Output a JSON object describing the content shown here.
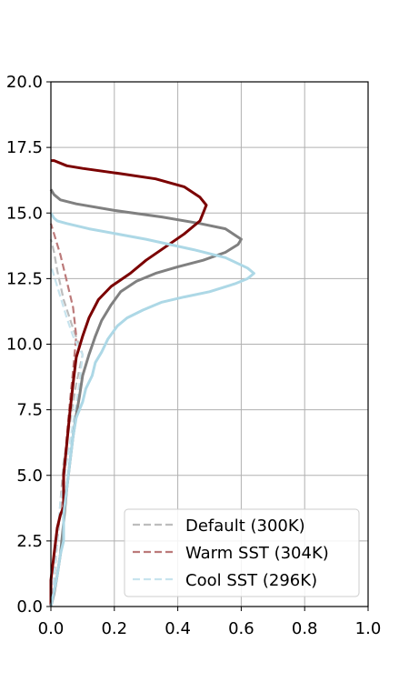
{
  "chart_data": {
    "type": "line",
    "xlim": [
      0.0,
      1.0
    ],
    "ylim": [
      0.0,
      20.0
    ],
    "grid": true,
    "x_ticks": [
      "0.0",
      "0.2",
      "0.4",
      "0.6",
      "0.8",
      "1.0"
    ],
    "y_ticks": [
      "0.0",
      "2.5",
      "5.0",
      "7.5",
      "10.0",
      "12.5",
      "15.0",
      "17.5",
      "20.0"
    ],
    "legend": {
      "placement": "lower-right",
      "entries": [
        {
          "label": "Default (300K)",
          "color": "#bdbdbd",
          "style": "dashed"
        },
        {
          "label": "Warm SST (304K)",
          "color": "#bc7a7a",
          "style": "dashed"
        },
        {
          "label": "Cool SST (296K)",
          "color": "#c8e4ee",
          "style": "dashed"
        }
      ]
    },
    "series": [
      {
        "name": "",
        "color": "#bdbdbd",
        "style": "dashed",
        "points": [
          [
            0.0,
            0.0
          ],
          [
            0.01,
            1.0
          ],
          [
            0.02,
            2.5
          ],
          [
            0.03,
            4.0
          ],
          [
            0.04,
            5.5
          ],
          [
            0.06,
            7.0
          ],
          [
            0.08,
            8.5
          ],
          [
            0.1,
            9.6
          ],
          [
            0.07,
            10.6
          ],
          [
            0.04,
            11.7
          ],
          [
            0.02,
            12.8
          ],
          [
            0.01,
            13.5
          ],
          [
            0.0,
            14.0
          ]
        ]
      },
      {
        "name": "",
        "color": "#bc7a7a",
        "style": "dashed",
        "points": [
          [
            0.0,
            0.0
          ],
          [
            0.01,
            1.2
          ],
          [
            0.02,
            2.5
          ],
          [
            0.03,
            3.7
          ],
          [
            0.04,
            5.0
          ],
          [
            0.05,
            6.5
          ],
          [
            0.06,
            7.8
          ],
          [
            0.07,
            9.0
          ],
          [
            0.08,
            10.3
          ],
          [
            0.07,
            11.4
          ],
          [
            0.05,
            12.4
          ],
          [
            0.03,
            13.4
          ],
          [
            0.01,
            14.2
          ],
          [
            0.0,
            14.6
          ]
        ]
      },
      {
        "name": "",
        "color": "#c8e4ee",
        "style": "dashed",
        "points": [
          [
            0.0,
            0.0
          ],
          [
            0.01,
            1.2
          ],
          [
            0.02,
            2.5
          ],
          [
            0.03,
            4.0
          ],
          [
            0.05,
            5.5
          ],
          [
            0.07,
            7.0
          ],
          [
            0.09,
            8.5
          ],
          [
            0.1,
            9.6
          ],
          [
            0.07,
            10.3
          ],
          [
            0.05,
            11.0
          ],
          [
            0.03,
            11.8
          ],
          [
            0.01,
            12.6
          ],
          [
            0.0,
            13.0
          ]
        ]
      },
      {
        "name": "",
        "color": "#808080",
        "style": "solid",
        "points": [
          [
            0.0,
            0.0
          ],
          [
            0.01,
            0.5
          ],
          [
            0.02,
            1.2
          ],
          [
            0.03,
            2.0
          ],
          [
            0.04,
            3.2
          ],
          [
            0.05,
            4.5
          ],
          [
            0.06,
            5.5
          ],
          [
            0.07,
            6.5
          ],
          [
            0.08,
            7.3
          ],
          [
            0.09,
            8.0
          ],
          [
            0.1,
            8.8
          ],
          [
            0.12,
            9.6
          ],
          [
            0.14,
            10.3
          ],
          [
            0.16,
            10.9
          ],
          [
            0.19,
            11.5
          ],
          [
            0.22,
            12.0
          ],
          [
            0.27,
            12.4
          ],
          [
            0.33,
            12.7
          ],
          [
            0.4,
            12.95
          ],
          [
            0.48,
            13.2
          ],
          [
            0.55,
            13.5
          ],
          [
            0.59,
            13.8
          ],
          [
            0.6,
            14.0
          ],
          [
            0.55,
            14.4
          ],
          [
            0.47,
            14.6
          ],
          [
            0.35,
            14.85
          ],
          [
            0.2,
            15.1
          ],
          [
            0.08,
            15.35
          ],
          [
            0.03,
            15.5
          ],
          [
            0.01,
            15.7
          ],
          [
            0.0,
            15.9
          ]
        ]
      },
      {
        "name": "",
        "color": "#7b0000",
        "style": "solid",
        "points": [
          [
            0.0,
            0.0
          ],
          [
            0.0,
            1.0
          ],
          [
            0.01,
            2.0
          ],
          [
            0.02,
            3.0
          ],
          [
            0.03,
            3.5
          ],
          [
            0.04,
            3.8
          ],
          [
            0.04,
            5.0
          ],
          [
            0.05,
            6.2
          ],
          [
            0.06,
            7.4
          ],
          [
            0.07,
            8.5
          ],
          [
            0.08,
            9.5
          ],
          [
            0.1,
            10.3
          ],
          [
            0.12,
            11.0
          ],
          [
            0.15,
            11.7
          ],
          [
            0.19,
            12.2
          ],
          [
            0.25,
            12.7
          ],
          [
            0.3,
            13.2
          ],
          [
            0.36,
            13.7
          ],
          [
            0.42,
            14.2
          ],
          [
            0.47,
            14.7
          ],
          [
            0.48,
            15.0
          ],
          [
            0.49,
            15.3
          ],
          [
            0.47,
            15.6
          ],
          [
            0.42,
            16.0
          ],
          [
            0.33,
            16.3
          ],
          [
            0.22,
            16.5
          ],
          [
            0.1,
            16.7
          ],
          [
            0.05,
            16.8
          ],
          [
            0.01,
            17.0
          ],
          [
            0.0,
            17.0
          ]
        ]
      },
      {
        "name": "",
        "color": "#add8e6",
        "style": "solid",
        "points": [
          [
            0.0,
            0.0
          ],
          [
            0.01,
            0.6
          ],
          [
            0.02,
            1.2
          ],
          [
            0.03,
            2.0
          ],
          [
            0.04,
            2.5
          ],
          [
            0.04,
            3.5
          ],
          [
            0.05,
            4.5
          ],
          [
            0.06,
            5.5
          ],
          [
            0.07,
            6.5
          ],
          [
            0.08,
            7.2
          ],
          [
            0.1,
            7.8
          ],
          [
            0.11,
            8.3
          ],
          [
            0.13,
            8.8
          ],
          [
            0.14,
            9.3
          ],
          [
            0.16,
            9.7
          ],
          [
            0.18,
            10.2
          ],
          [
            0.21,
            10.7
          ],
          [
            0.24,
            11.0
          ],
          [
            0.29,
            11.3
          ],
          [
            0.35,
            11.6
          ],
          [
            0.42,
            11.8
          ],
          [
            0.5,
            12.0
          ],
          [
            0.58,
            12.3
          ],
          [
            0.62,
            12.5
          ],
          [
            0.64,
            12.7
          ],
          [
            0.62,
            12.9
          ],
          [
            0.55,
            13.3
          ],
          [
            0.45,
            13.6
          ],
          [
            0.3,
            14.0
          ],
          [
            0.12,
            14.4
          ],
          [
            0.05,
            14.6
          ],
          [
            0.02,
            14.7
          ],
          [
            0.01,
            14.8
          ],
          [
            0.0,
            15.0
          ]
        ]
      }
    ]
  }
}
